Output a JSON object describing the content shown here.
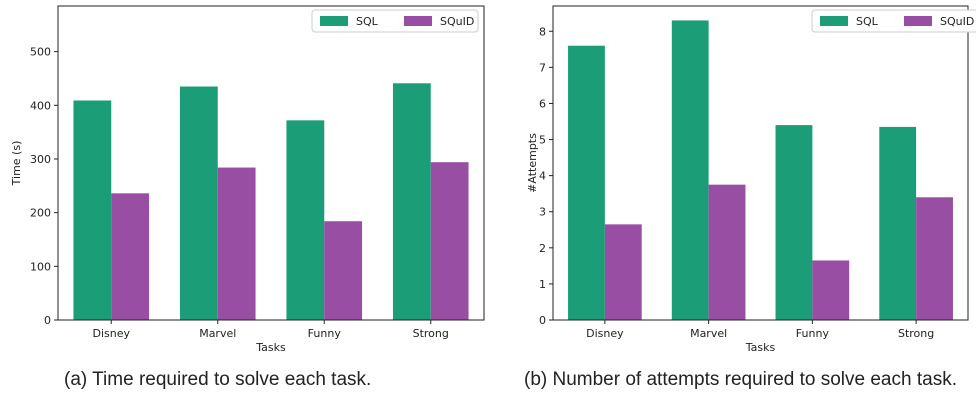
{
  "colors": {
    "sql": "#1b9e77",
    "squid": "#984ea3"
  },
  "captions": {
    "a": "(a) Time required to solve each task.",
    "b": "(b) Number of attempts required to solve each task."
  },
  "chart_data": [
    {
      "type": "bar",
      "categories": [
        "Disney",
        "Marvel",
        "Funny",
        "Strong"
      ],
      "series": [
        {
          "name": "SQL",
          "values": [
            409,
            435,
            372,
            441
          ]
        },
        {
          "name": "SQuID",
          "values": [
            236,
            284,
            184,
            294
          ]
        }
      ],
      "xlabel": "Tasks",
      "ylabel": "Time (s)",
      "ylim": [
        0,
        585
      ],
      "yticks": [
        0,
        100,
        200,
        300,
        400,
        500
      ],
      "grid": false,
      "legend": "top-right"
    },
    {
      "type": "bar",
      "categories": [
        "Disney",
        "Marvel",
        "Funny",
        "Strong"
      ],
      "series": [
        {
          "name": "SQL",
          "values": [
            7.6,
            8.3,
            5.4,
            5.35
          ]
        },
        {
          "name": "SQuID",
          "values": [
            2.65,
            3.75,
            1.65,
            3.4
          ]
        }
      ],
      "xlabel": "Tasks",
      "ylabel": "#Attempts",
      "ylim": [
        0,
        8.7
      ],
      "yticks": [
        0,
        1,
        2,
        3,
        4,
        5,
        6,
        7,
        8
      ],
      "grid": false,
      "legend": "top-right"
    }
  ]
}
